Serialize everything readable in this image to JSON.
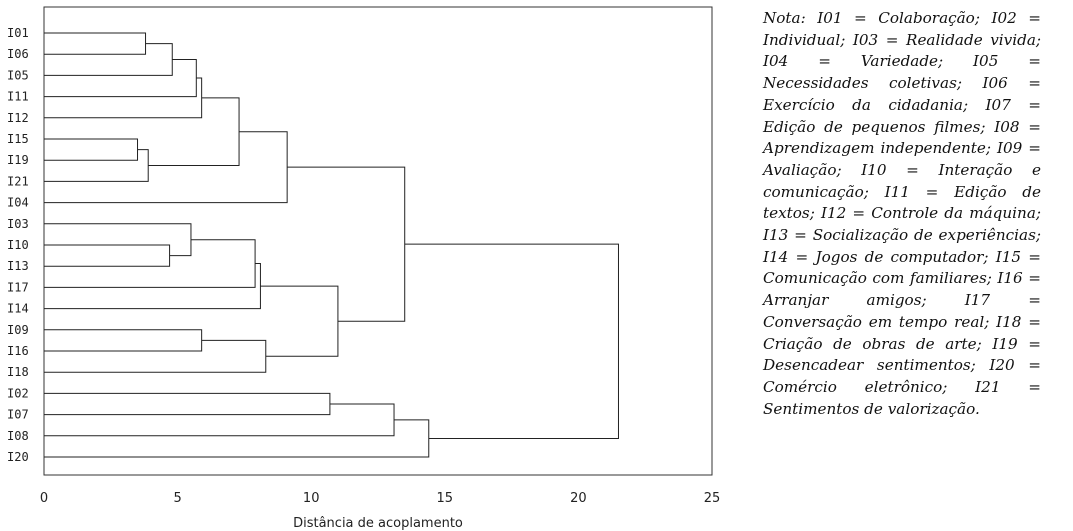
{
  "chart_data": {
    "type": "dendrogram",
    "xlabel": "Distância de acoplamento",
    "xlim": [
      0,
      25
    ],
    "xticks": [
      0,
      5,
      10,
      15,
      20,
      25
    ],
    "leaf_order": [
      "I01",
      "I06",
      "I05",
      "I11",
      "I12",
      "I15",
      "I19",
      "I21",
      "I04",
      "I03",
      "I10",
      "I13",
      "I17",
      "I14",
      "I09",
      "I16",
      "I18",
      "I02",
      "I07",
      "I08",
      "I20"
    ],
    "merges": [
      {
        "id": "m1",
        "left": "I15",
        "right": "I19",
        "distance": 3.5
      },
      {
        "id": "m2",
        "left": "I01",
        "right": "I06",
        "distance": 3.8
      },
      {
        "id": "m3",
        "left": "I10",
        "right": "I13",
        "distance": 4.7
      },
      {
        "id": "m4",
        "left": "m1",
        "right": "I21",
        "distance": 3.9
      },
      {
        "id": "m5",
        "left": "m2",
        "right": "I05",
        "distance": 4.8
      },
      {
        "id": "m6",
        "left": "I03",
        "right": "m3",
        "distance": 5.5
      },
      {
        "id": "m7",
        "left": "m5",
        "right": "I11",
        "distance": 5.7
      },
      {
        "id": "m8",
        "left": "m7",
        "right": "I12",
        "distance": 5.9
      },
      {
        "id": "m9",
        "left": "I09",
        "right": "I16",
        "distance": 5.9
      },
      {
        "id": "m10",
        "left": "m8",
        "right": "m4",
        "distance": 7.3
      },
      {
        "id": "m11",
        "left": "m6",
        "right": "I17",
        "distance": 7.9
      },
      {
        "id": "m12",
        "left": "m11",
        "right": "I14",
        "distance": 8.1
      },
      {
        "id": "m13",
        "left": "m9",
        "right": "I18",
        "distance": 8.3
      },
      {
        "id": "m14",
        "left": "m10",
        "right": "I04",
        "distance": 9.1
      },
      {
        "id": "m15",
        "left": "I02",
        "right": "I07",
        "distance": 10.7
      },
      {
        "id": "m16",
        "left": "m12",
        "right": "m13",
        "distance": 11.0
      },
      {
        "id": "m17",
        "left": "m15",
        "right": "I08",
        "distance": 13.1
      },
      {
        "id": "m18",
        "left": "m14",
        "right": "m16",
        "distance": 13.5
      },
      {
        "id": "m19",
        "left": "m17",
        "right": "I20",
        "distance": 14.4
      },
      {
        "id": "m20",
        "left": "m18",
        "right": "m19",
        "distance": 21.5
      }
    ]
  },
  "note": "Nota: I01 = Colaboração; I02 = Individual; I03 = Realidade vivida; I04 = Variedade; I05 = Necessidades coletivas; I06 = Exercício da cidadania; I07 = Edição de pequenos filmes; I08 = Aprendizagem independente; I09 = Avaliação; I10 = Interação e comunicação; I11 = Edição de textos; I12 = Controle da máquina; I13 = Socialização de experiências; I14 = Jogos de computador; I15 = Comunicação com familiares; I16 = Arranjar amigos; I17 = Conversação em tempo real; I18 = Criação de obras de arte; I19 = Desencadear sentimentos; I20 = Comércio eletrônico; I21 = Sentimentos de valorização."
}
